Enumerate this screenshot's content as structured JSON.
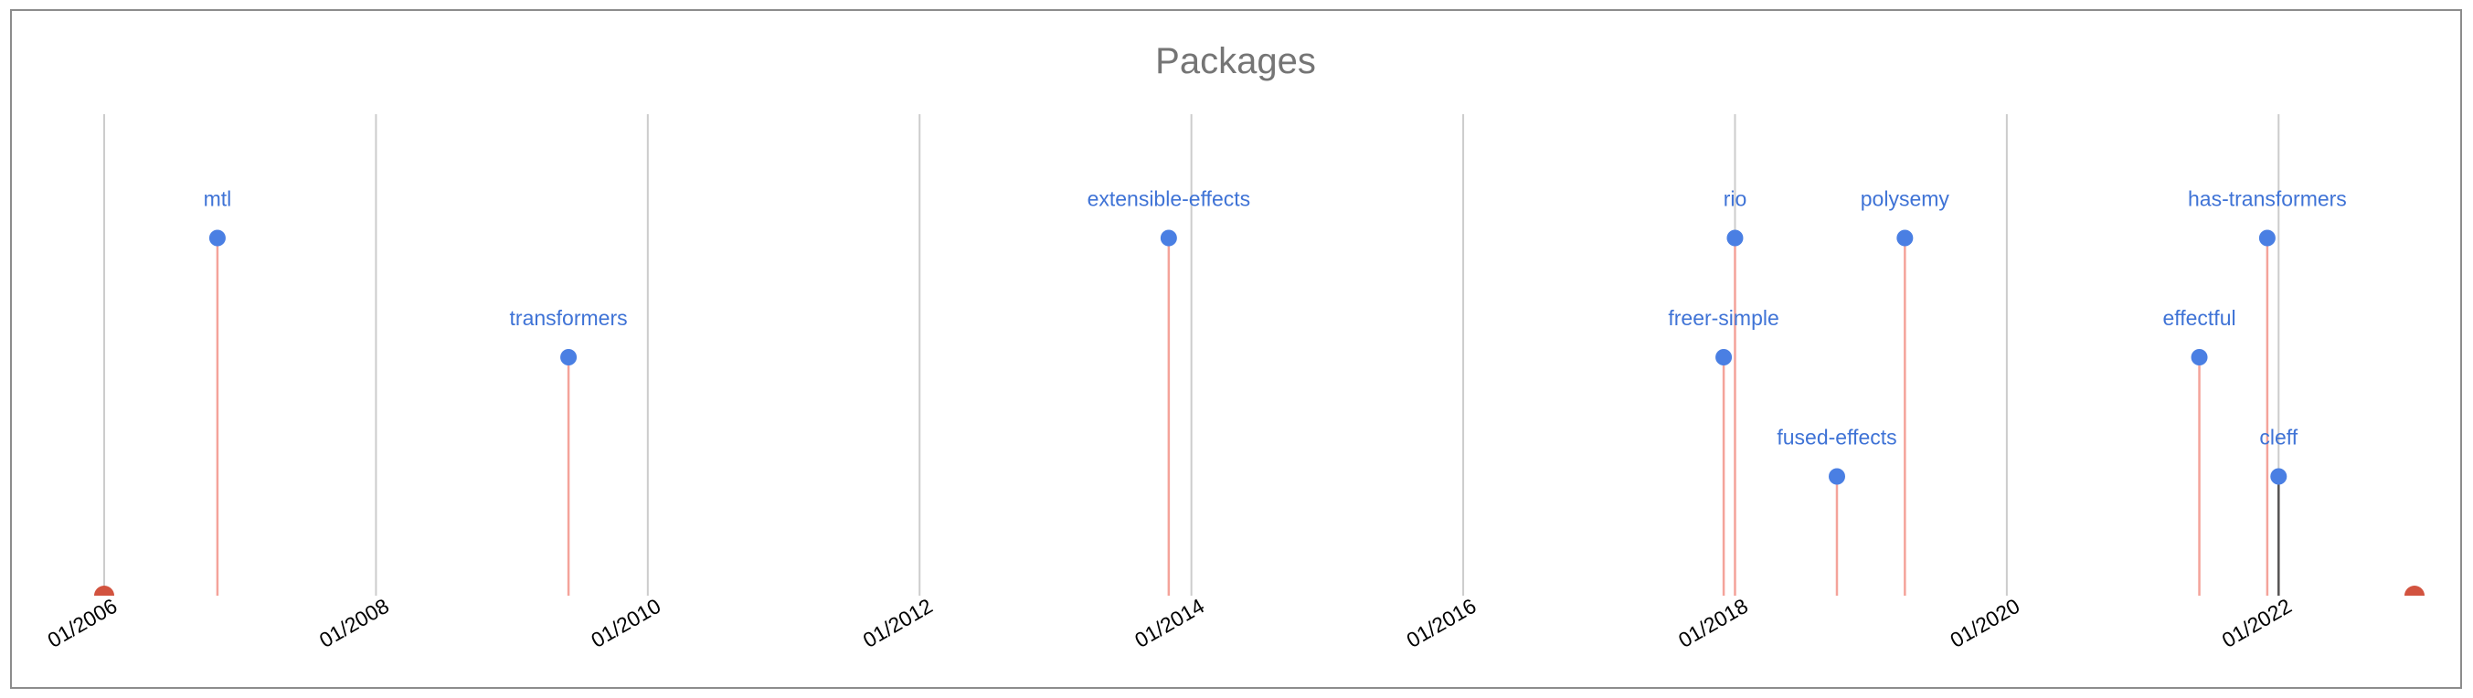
{
  "chart_data": {
    "type": "scatter",
    "title": "Packages",
    "xlabel": "",
    "ylabel": "",
    "x_range": [
      "2006-01",
      "2023-01"
    ],
    "y_range": [
      0,
      4
    ],
    "grid": true,
    "x_ticks": [
      "01/2006",
      "01/2008",
      "01/2010",
      "01/2012",
      "01/2014",
      "01/2016",
      "01/2018",
      "01/2020",
      "01/2022"
    ],
    "points": [
      {
        "label": "mtl",
        "date": "2006-11",
        "level": 3
      },
      {
        "label": "transformers",
        "date": "2009-06",
        "level": 2
      },
      {
        "label": "extensible-effects",
        "date": "2013-11",
        "level": 3
      },
      {
        "label": "freer-simple",
        "date": "2017-12",
        "level": 2
      },
      {
        "label": "rio",
        "date": "2018-01",
        "level": 3
      },
      {
        "label": "fused-effects",
        "date": "2018-10",
        "level": 1
      },
      {
        "label": "polysemy",
        "date": "2019-04",
        "level": 3
      },
      {
        "label": "effectful",
        "date": "2021-06",
        "level": 2
      },
      {
        "label": "has-transformers",
        "date": "2021-12",
        "level": 3
      },
      {
        "label": "cleff",
        "date": "2022-01",
        "level": 1
      }
    ],
    "colors": {
      "marker": "#4a7fe3",
      "label": "#3f73d6",
      "stem": "#f4a39a",
      "grid": "#cccccc",
      "range_marker": "#d2533f"
    }
  }
}
